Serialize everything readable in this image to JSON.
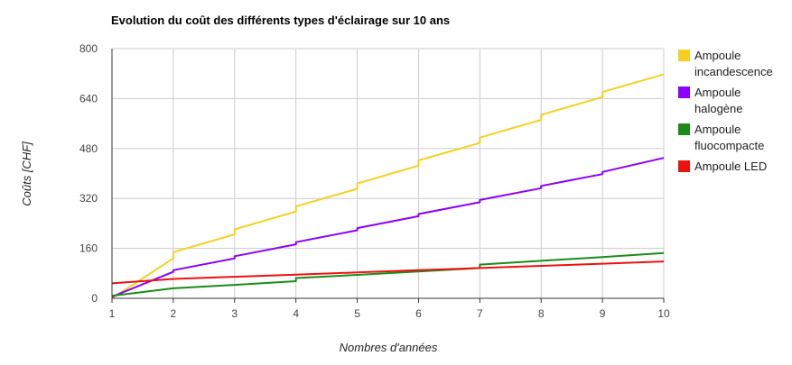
{
  "chart_data": {
    "type": "line",
    "title": "Evolution du coût des différents types d'éclairage sur 10 ans",
    "xlabel": "Nombres d'années",
    "ylabel": "Coûts [CHF]",
    "x": [
      1,
      2,
      3,
      4,
      5,
      6,
      7,
      8,
      9,
      10
    ],
    "xlim": [
      1,
      10
    ],
    "ylim": [
      0,
      800
    ],
    "yticks": [
      0,
      160,
      320,
      480,
      640,
      800
    ],
    "grid": true,
    "legend_position": "right",
    "series": [
      {
        "name": "Ampoule incandescence",
        "color": "#f5d020",
        "points": [
          [
            1,
            0
          ],
          [
            2,
            128
          ],
          [
            2,
            148
          ],
          [
            3,
            205
          ],
          [
            3,
            221
          ],
          [
            4,
            278
          ],
          [
            4,
            295
          ],
          [
            5,
            351
          ],
          [
            5,
            368
          ],
          [
            6,
            425
          ],
          [
            6,
            442
          ],
          [
            7,
            498
          ],
          [
            7,
            515
          ],
          [
            8,
            572
          ],
          [
            8,
            588
          ],
          [
            9,
            645
          ],
          [
            9,
            661
          ],
          [
            10,
            718
          ]
        ]
      },
      {
        "name": "Ampoule halogène",
        "color": "#8b00ff",
        "points": [
          [
            1,
            5
          ],
          [
            2,
            85
          ],
          [
            2,
            90
          ],
          [
            3,
            128
          ],
          [
            3,
            135
          ],
          [
            4,
            173
          ],
          [
            4,
            180
          ],
          [
            5,
            218
          ],
          [
            5,
            225
          ],
          [
            6,
            263
          ],
          [
            6,
            270
          ],
          [
            7,
            308
          ],
          [
            7,
            315
          ],
          [
            8,
            353
          ],
          [
            8,
            360
          ],
          [
            9,
            398
          ],
          [
            9,
            405
          ],
          [
            10,
            450
          ]
        ]
      },
      {
        "name": "Ampoule fluocompacte",
        "color": "#1a8c1a",
        "points": [
          [
            1,
            8
          ],
          [
            2,
            32
          ],
          [
            3,
            43
          ],
          [
            4,
            55
          ],
          [
            4,
            65
          ],
          [
            5,
            75
          ],
          [
            6,
            86
          ],
          [
            7,
            97
          ],
          [
            7,
            108
          ],
          [
            8,
            120
          ],
          [
            9,
            132
          ],
          [
            10,
            145
          ]
        ]
      },
      {
        "name": "Ampoule LED",
        "color": "#ee1111",
        "points": [
          [
            1,
            48
          ],
          [
            2,
            62
          ],
          [
            3,
            69
          ],
          [
            4,
            76
          ],
          [
            5,
            83
          ],
          [
            6,
            90
          ],
          [
            7,
            97
          ],
          [
            8,
            104
          ],
          [
            9,
            111
          ],
          [
            10,
            118
          ]
        ]
      }
    ],
    "legend": [
      {
        "lines": [
          "Ampoule",
          "incandescence"
        ],
        "color": "#f5d020"
      },
      {
        "lines": [
          "Ampoule",
          "halogène"
        ],
        "color": "#8b00ff"
      },
      {
        "lines": [
          "Ampoule",
          "fluocompacte"
        ],
        "color": "#1a8c1a"
      },
      {
        "lines": [
          "Ampoule LED"
        ],
        "color": "#ee1111"
      }
    ]
  }
}
